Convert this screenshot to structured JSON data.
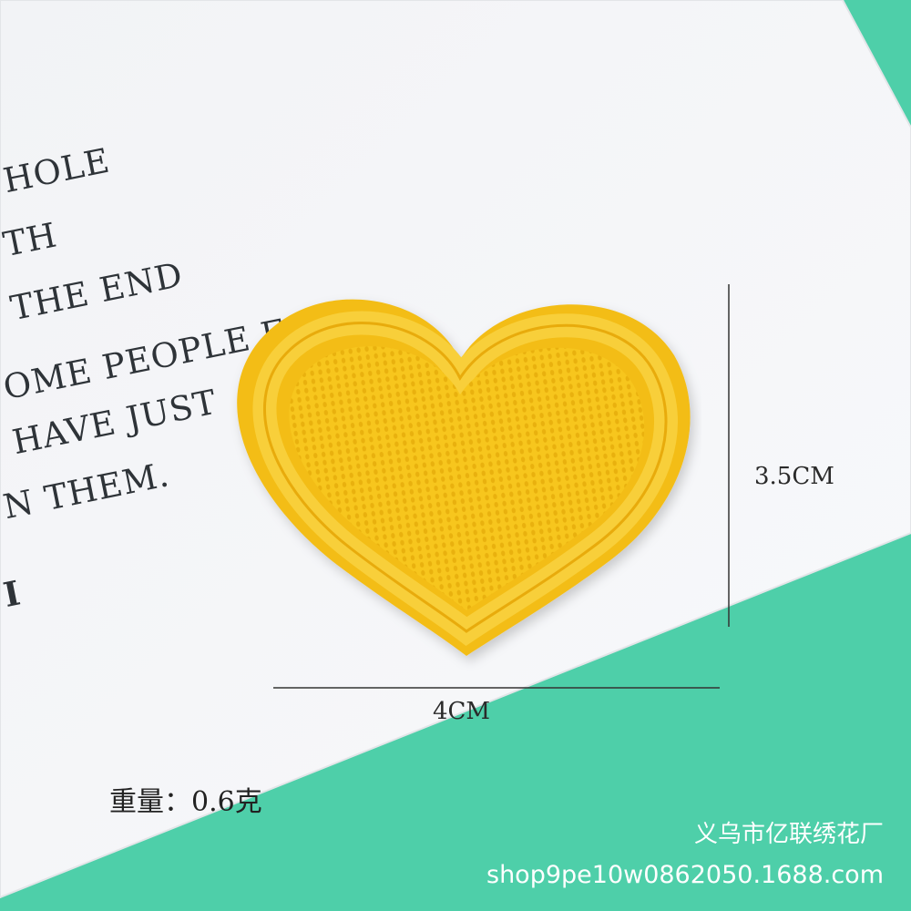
{
  "card_text": {
    "lines": [
      "HOLE",
      "TH",
      "THE END",
      "OME PEOPLE FOR",
      "HAVE JUST",
      "N THEM."
    ],
    "stray_mark": "I"
  },
  "dimensions": {
    "height_label": "3.5CM",
    "width_label": "4CM"
  },
  "weight_label": "重量：0.6克",
  "watermark": {
    "company": "义乌市亿联绣花厂",
    "url": "shop9pe10w0862050.1688.com"
  },
  "colors": {
    "background": "#4ecfa9",
    "card": "#f6f7f9",
    "patch": "#f5c21a",
    "patch_border": "#f0b512"
  },
  "subject": {
    "object": "yellow embroidered heart patch",
    "icon": "heart-patch"
  }
}
